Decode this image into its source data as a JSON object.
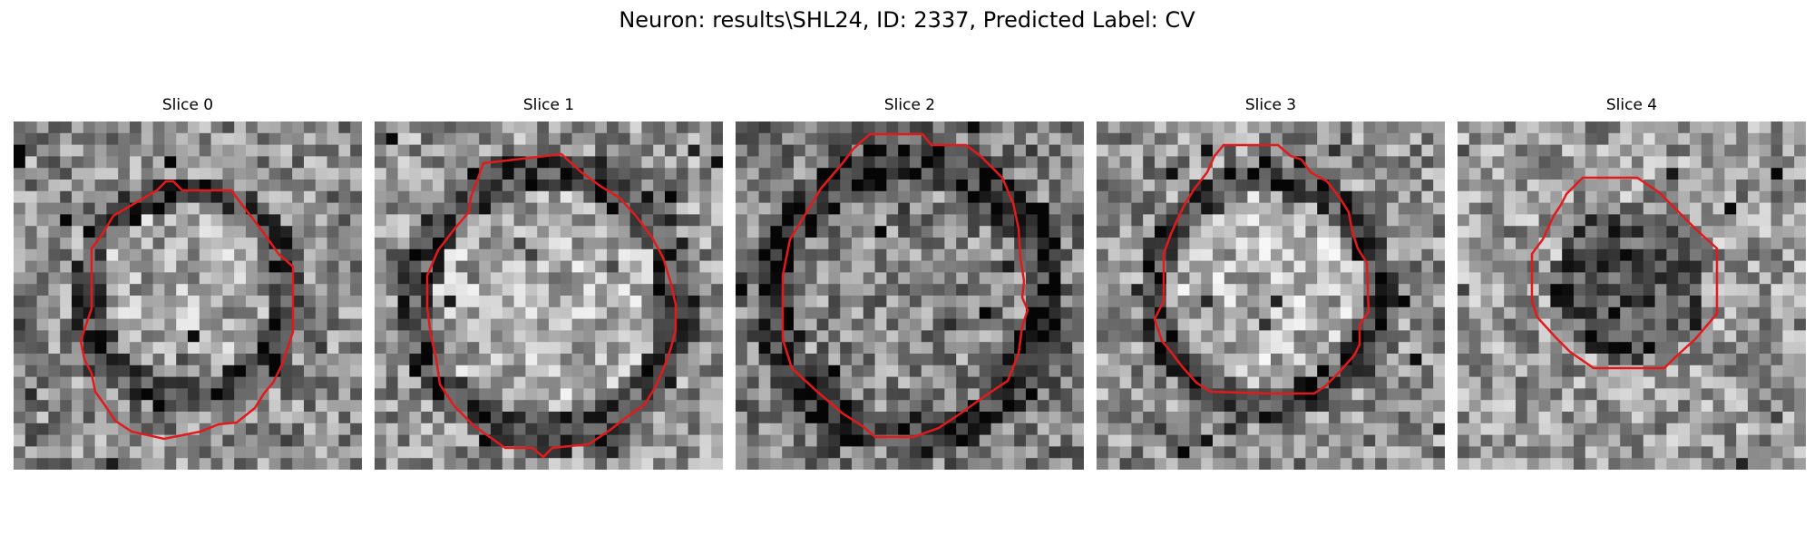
{
  "figure": {
    "title": "Neuron: results\\SHL24, ID: 2337, Predicted Label: CV"
  },
  "panels": [
    {
      "title": "Slice 0"
    },
    {
      "title": "Slice 1"
    },
    {
      "title": "Slice 2"
    },
    {
      "title": "Slice 3"
    },
    {
      "title": "Slice 4"
    }
  ],
  "colors": {
    "contour": "#e31a1c",
    "background": "#ffffff"
  }
}
